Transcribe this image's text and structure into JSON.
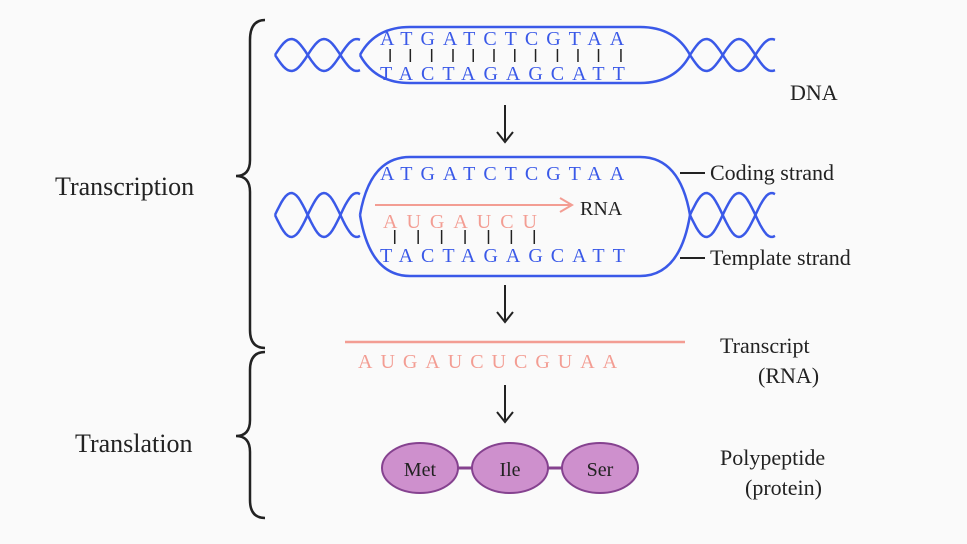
{
  "colors": {
    "dna_stroke": "#3a59e8",
    "dna_text": "#3a59e8",
    "rna_stroke": "#f39d93",
    "rna_text": "#f39d93",
    "ink": "#222222",
    "amino_fill": "#ce90cd",
    "amino_stroke": "#85428f",
    "tick": "#222222",
    "bg": "#fafafa"
  },
  "sizes": {
    "seq_fontsize": 20,
    "label_fontsize": 22,
    "section_fontsize": 24,
    "letter_spacing": 8,
    "dna_stroke_w": 2.5,
    "rna_line_w": 2,
    "arrow_w": 2
  },
  "stage1": {
    "top_seq": "ATGATCTCGTAA",
    "bottom_seq": "TACTAGAGCATT",
    "right_label": "DNA"
  },
  "stage2": {
    "coding": "ATGATCTCGTAA",
    "template": "TACTAGAGCATT",
    "rna": "AUGAUCU",
    "rna_label": "RNA",
    "coding_label": "Coding strand",
    "template_label": "Template strand"
  },
  "stage3": {
    "transcript": "AUGAUCUCGUAA",
    "label_line1": "Transcript",
    "label_line2": "(RNA)"
  },
  "stage4": {
    "aminoacids": [
      "Met",
      "Ile",
      "Ser"
    ],
    "label_line1": "Polypeptide",
    "label_line2": "(protein)"
  },
  "sections": {
    "transcription": "Transcription",
    "translation": "Translation"
  }
}
